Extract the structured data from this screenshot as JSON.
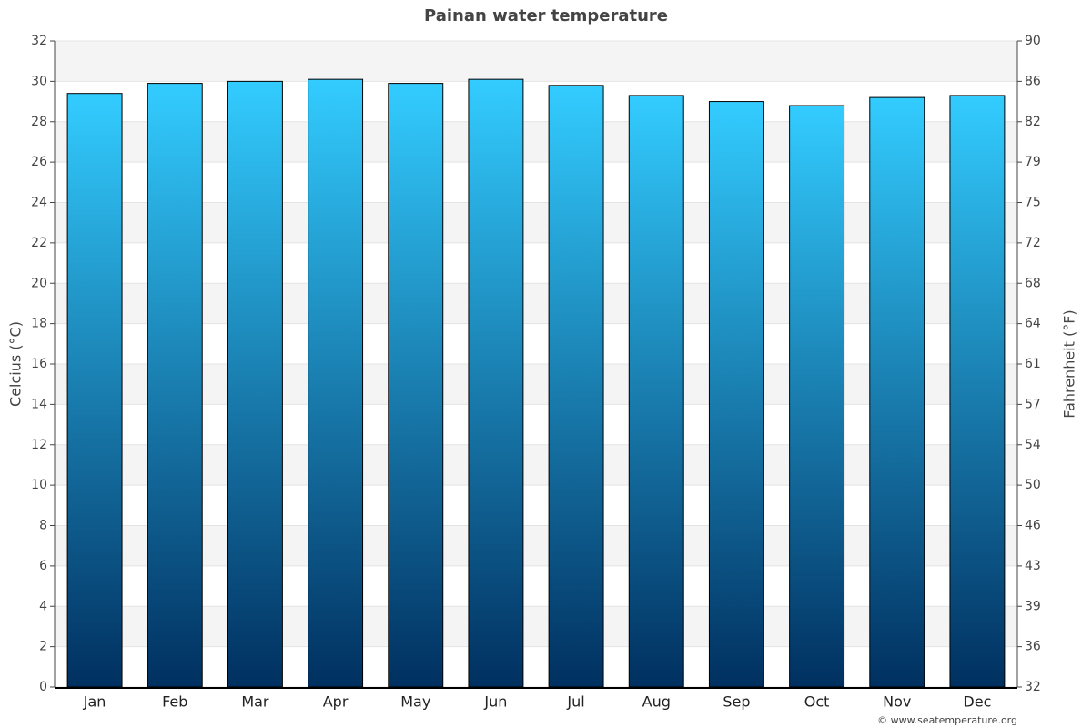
{
  "chart_data": {
    "type": "bar",
    "title": "Painan water temperature",
    "y_label": "Celcius (°C)",
    "y2_label": "Fahrenheit (°F)",
    "categories": [
      "Jan",
      "Feb",
      "Mar",
      "Apr",
      "May",
      "Jun",
      "Jul",
      "Aug",
      "Sep",
      "Oct",
      "Nov",
      "Dec"
    ],
    "values": [
      29.4,
      29.9,
      30.0,
      30.1,
      29.9,
      30.1,
      29.8,
      29.3,
      29.0,
      28.8,
      29.2,
      29.3
    ],
    "color_top": "#33ccff",
    "color_bottom": "#003060",
    "ylim": [
      0,
      32
    ],
    "yticks": [
      0,
      2,
      4,
      6,
      8,
      10,
      12,
      14,
      16,
      18,
      20,
      22,
      24,
      26,
      28,
      30,
      32
    ],
    "y2lim": [
      32,
      89.6
    ],
    "y2ticks": [
      32,
      {
        "value": 35.6,
        "label": "36"
      },
      {
        "value": 39.2,
        "label": "39"
      },
      {
        "value": 42.8,
        "label": "43"
      },
      {
        "value": 46.4,
        "label": "46"
      },
      50,
      {
        "value": 53.6,
        "label": "54"
      },
      {
        "value": 57.2,
        "label": "57"
      },
      {
        "value": 60.8,
        "label": "61"
      },
      {
        "value": 64.4,
        "label": "64"
      },
      68,
      {
        "value": 71.6,
        "label": "72"
      },
      {
        "value": 75.2,
        "label": "75"
      },
      {
        "value": 78.8,
        "label": "79"
      },
      {
        "value": 82.4,
        "label": "82"
      },
      86,
      {
        "value": 89.6,
        "label": "90"
      }
    ],
    "grid": true,
    "credit": "© www.seatemperature.org"
  }
}
